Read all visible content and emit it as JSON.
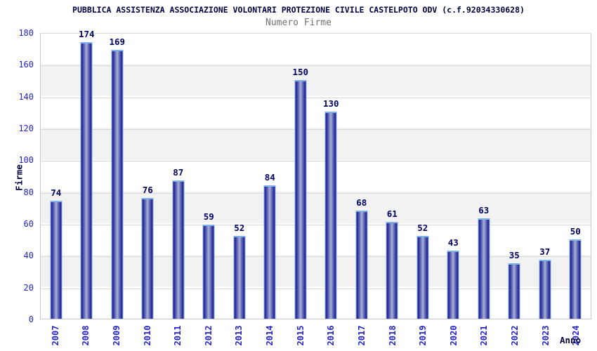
{
  "chart": {
    "title": "PUBBLICA ASSISTENZA ASSOCIAZIONE VOLONTARI PROTEZIONE CIVILE CASTELPOTO ODV (c.f.92034330628)",
    "subtitle": "Numero Firme",
    "ylabel": "Firme",
    "xlabel": "Anno"
  },
  "chart_data": {
    "type": "bar",
    "title": "Numero Firme",
    "xlabel": "Anno",
    "ylabel": "Firme",
    "categories": [
      "2007",
      "2008",
      "2009",
      "2010",
      "2011",
      "2012",
      "2013",
      "2014",
      "2015",
      "2016",
      "2017",
      "2018",
      "2019",
      "2020",
      "2021",
      "2022",
      "2023",
      "2024"
    ],
    "values": [
      74,
      174,
      169,
      76,
      87,
      59,
      52,
      84,
      150,
      130,
      68,
      61,
      52,
      43,
      63,
      35,
      37,
      50
    ],
    "ylim": [
      0,
      180
    ],
    "ytick_step": 20,
    "grid": true,
    "legend": "none",
    "band_colors": [
      "#ffffff",
      "#f2f2f2"
    ]
  },
  "colors": {
    "bar_edge": "#222288",
    "bar_center": "#aab1da",
    "bar_cap": "#7fb2e8",
    "axis_label_blue": "#2323cc",
    "value_label_navy": "#000066",
    "title_navy": "#000040",
    "subtitle_gray": "#737373",
    "grid_line": "#d9d9d9",
    "band_gray": "#f2f2f2"
  }
}
